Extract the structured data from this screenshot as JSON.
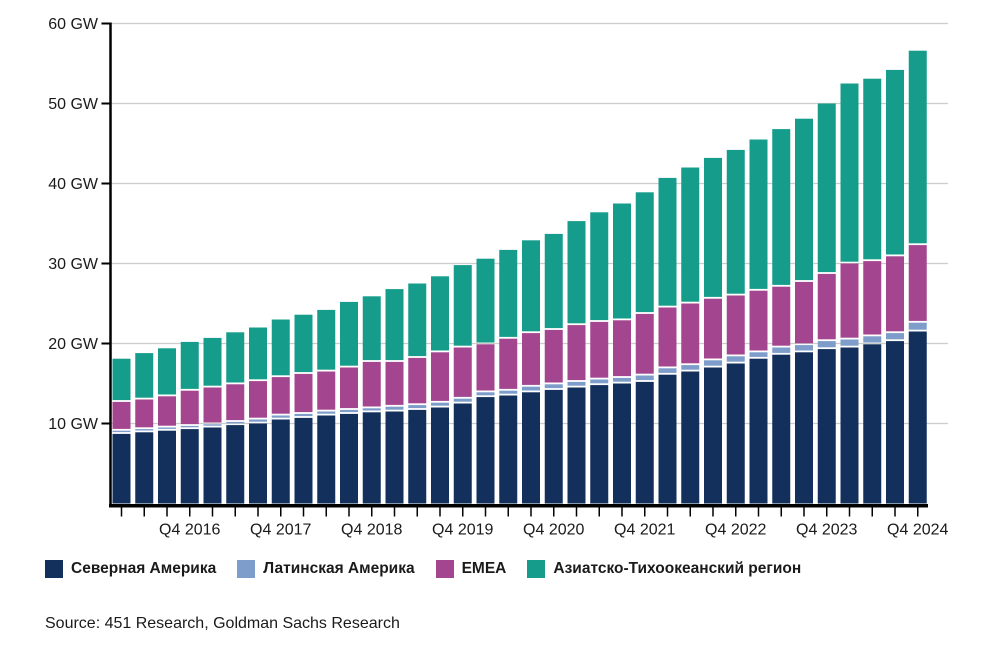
{
  "chart_data": {
    "type": "bar",
    "stacked": true,
    "title": "",
    "unit": "GW",
    "grid": true,
    "legend_position": "bottom",
    "ylim": [
      0,
      60
    ],
    "yticks": [
      {
        "value": 10,
        "label": "10 GW"
      },
      {
        "value": 20,
        "label": "20 GW"
      },
      {
        "value": 30,
        "label": "30 GW"
      },
      {
        "value": 40,
        "label": "40 GW"
      },
      {
        "value": 50,
        "label": "50 GW"
      },
      {
        "value": 60,
        "label": "60 GW"
      }
    ],
    "categories": [
      "Q1 2016",
      "Q2 2016",
      "Q3 2016",
      "Q4 2016",
      "Q1 2017",
      "Q2 2017",
      "Q3 2017",
      "Q4 2017",
      "Q1 2018",
      "Q2 2018",
      "Q3 2018",
      "Q4 2018",
      "Q1 2019",
      "Q2 2019",
      "Q3 2019",
      "Q4 2019",
      "Q1 2020",
      "Q2 2020",
      "Q3 2020",
      "Q4 2020",
      "Q1 2021",
      "Q2 2021",
      "Q3 2021",
      "Q4 2021",
      "Q1 2022",
      "Q2 2022",
      "Q3 2022",
      "Q4 2022",
      "Q1 2023",
      "Q2 2023",
      "Q3 2023",
      "Q4 2023",
      "Q1 2024",
      "Q2 2024",
      "Q3 2024",
      "Q4 2024"
    ],
    "xtick_labels_shown": [
      "Q4 2016",
      "Q4 2017",
      "Q4 2018",
      "Q4 2019",
      "Q4 2020",
      "Q4 2021",
      "Q4 2022",
      "Q4 2023",
      "Q4 2024"
    ],
    "xtick_every": 4,
    "series": [
      {
        "name": "Северная Америка",
        "color": "#12305b",
        "values": [
          8.7,
          8.9,
          9.1,
          9.3,
          9.5,
          9.8,
          10.0,
          10.5,
          10.7,
          11.0,
          11.2,
          11.4,
          11.5,
          11.7,
          12.0,
          12.5,
          13.3,
          13.5,
          13.9,
          14.2,
          14.5,
          14.8,
          15.0,
          15.2,
          16.1,
          16.5,
          17.0,
          17.5,
          18.1,
          18.6,
          18.9,
          19.3,
          19.5,
          19.9,
          20.3,
          21.5
        ]
      },
      {
        "name": "Латинская Америка",
        "color": "#7e9dca",
        "values": [
          0.4,
          0.4,
          0.4,
          0.4,
          0.4,
          0.4,
          0.5,
          0.5,
          0.5,
          0.5,
          0.5,
          0.5,
          0.6,
          0.6,
          0.6,
          0.6,
          0.6,
          0.6,
          0.7,
          0.7,
          0.7,
          0.7,
          0.7,
          0.8,
          0.8,
          0.8,
          0.9,
          0.9,
          0.8,
          0.9,
          0.9,
          1.0,
          1.0,
          1.0,
          1.0,
          1.1
        ]
      },
      {
        "name": "EMEA",
        "color": "#a4468f",
        "values": [
          3.6,
          3.7,
          3.9,
          4.4,
          4.6,
          4.7,
          4.8,
          4.8,
          5.0,
          5.0,
          5.3,
          5.8,
          5.6,
          5.9,
          6.3,
          6.4,
          6.0,
          6.5,
          6.7,
          6.8,
          7.1,
          7.2,
          7.2,
          7.7,
          7.6,
          7.7,
          7.7,
          7.6,
          7.7,
          7.6,
          7.9,
          8.4,
          9.5,
          9.4,
          9.6,
          9.7
        ]
      },
      {
        "name": "Азиатско-Тихоокеанский регион",
        "color": "#169c8b",
        "values": [
          5.4,
          5.8,
          6.0,
          6.1,
          6.2,
          6.5,
          6.7,
          7.2,
          7.4,
          7.7,
          8.2,
          8.2,
          9.1,
          9.3,
          9.5,
          10.3,
          10.7,
          11.1,
          11.6,
          12.0,
          13.0,
          13.7,
          14.6,
          15.2,
          16.2,
          17.0,
          17.6,
          18.2,
          18.9,
          19.7,
          20.4,
          21.3,
          22.5,
          22.8,
          23.3,
          24.3
        ]
      }
    ],
    "colors": {
      "axis": "#000000",
      "gridline": "#cccccc",
      "text": "#1a1a1a",
      "background": "#ffffff"
    }
  },
  "source": {
    "text": "Source: 451 Research, Goldman Sachs Research"
  }
}
